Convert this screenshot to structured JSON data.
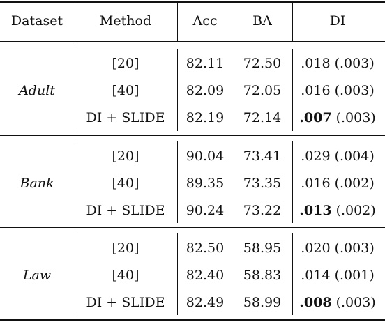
{
  "table": {
    "headers": [
      "Dataset",
      "Method",
      "Acc",
      "BA",
      "DI"
    ],
    "groups": [
      {
        "dataset": "Adult",
        "rows": [
          {
            "method": "[20]",
            "acc": "82.11",
            "ba": "72.50",
            "di_value": ".018",
            "di_std": "(.003)",
            "di_bold": false
          },
          {
            "method": "[40]",
            "acc": "82.09",
            "ba": "72.05",
            "di_value": ".016",
            "di_std": "(.003)",
            "di_bold": false
          },
          {
            "method": "DI + SLIDE",
            "acc": "82.19",
            "ba": "72.14",
            "di_value": ".007",
            "di_std": "(.003)",
            "di_bold": true
          }
        ]
      },
      {
        "dataset": "Bank",
        "rows": [
          {
            "method": "[20]",
            "acc": "90.04",
            "ba": "73.41",
            "di_value": ".029",
            "di_std": "(.004)",
            "di_bold": false
          },
          {
            "method": "[40]",
            "acc": "89.35",
            "ba": "73.35",
            "di_value": ".016",
            "di_std": "(.002)",
            "di_bold": false
          },
          {
            "method": "DI + SLIDE",
            "acc": "90.24",
            "ba": "73.22",
            "di_value": ".013",
            "di_std": "(.002)",
            "di_bold": true
          }
        ]
      },
      {
        "dataset": "Law",
        "rows": [
          {
            "method": "[20]",
            "acc": "82.50",
            "ba": "58.95",
            "di_value": ".020",
            "di_std": "(.003)",
            "di_bold": false
          },
          {
            "method": "[40]",
            "acc": "82.40",
            "ba": "58.83",
            "di_value": ".014",
            "di_std": "(.001)",
            "di_bold": false
          },
          {
            "method": "DI + SLIDE",
            "acc": "82.49",
            "ba": "58.99",
            "di_value": ".008",
            "di_std": "(.003)",
            "di_bold": true
          }
        ]
      }
    ]
  }
}
